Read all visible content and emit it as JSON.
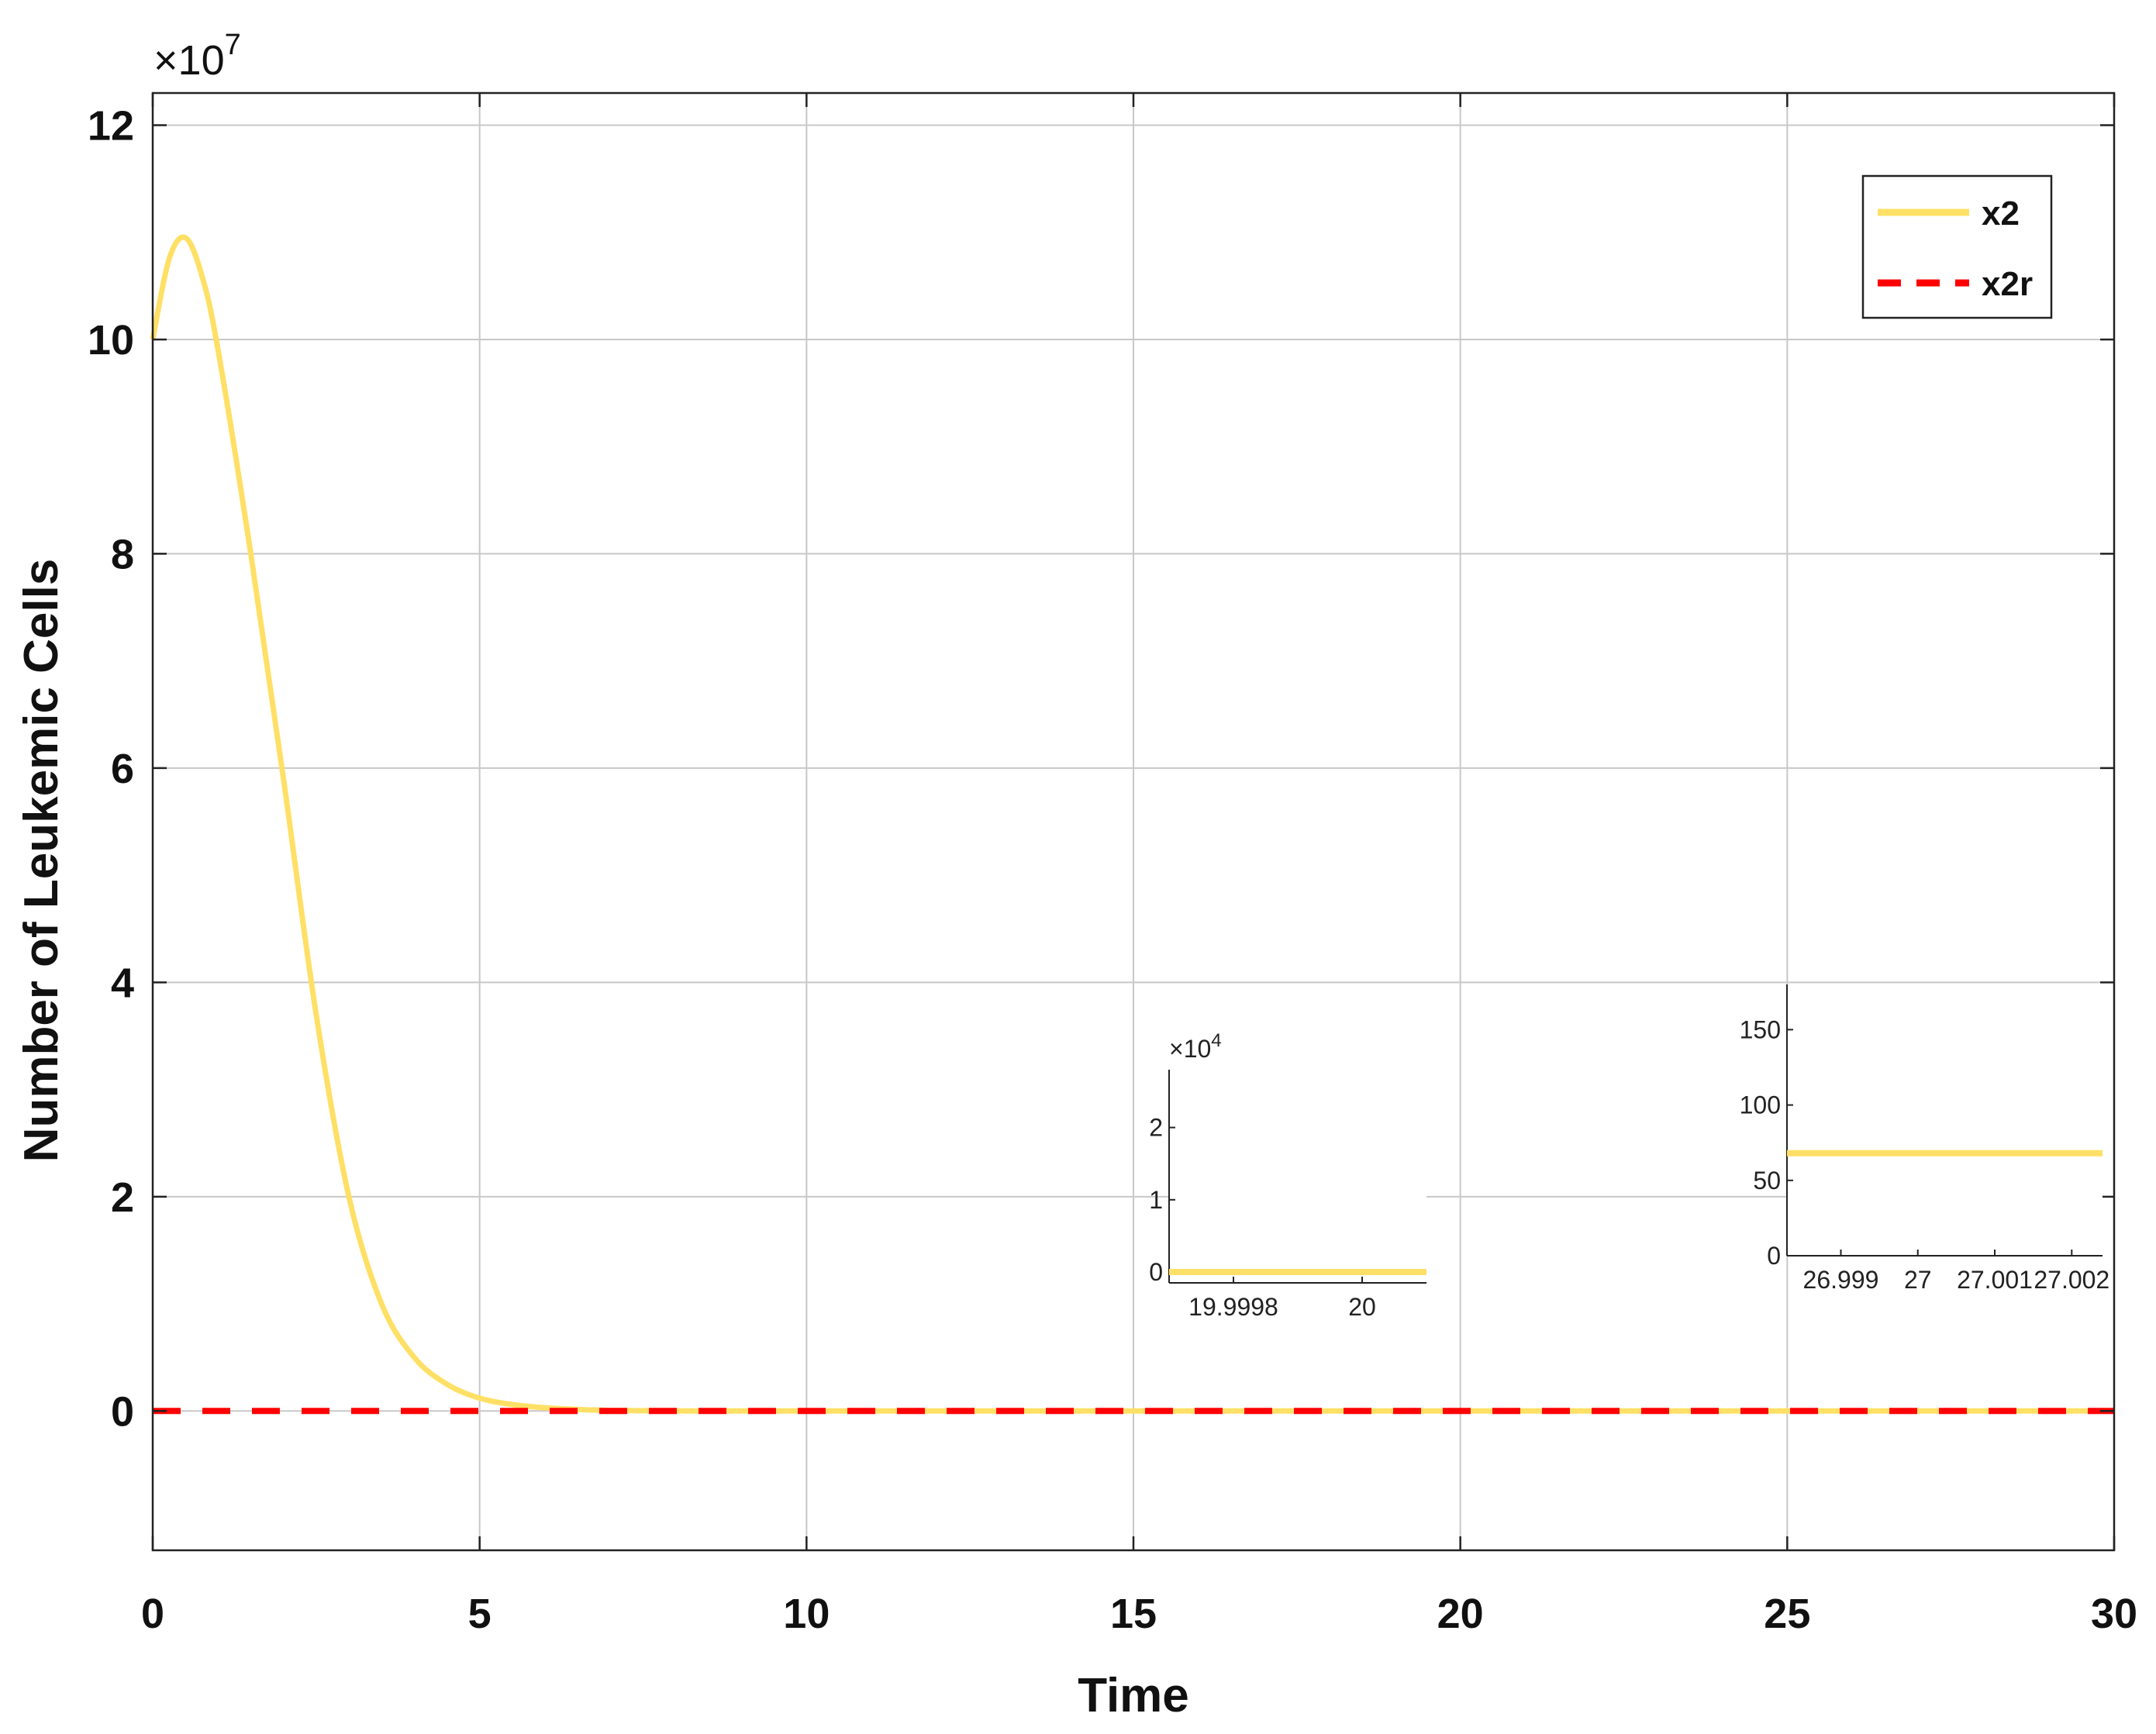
{
  "chart_data": {
    "type": "line",
    "xlabel": "Time",
    "ylabel": "Number of Leukemic Cells",
    "y_exponent_label": "×10",
    "y_exponent_power": "7",
    "xlim": [
      0,
      30
    ],
    "ylim": [
      -1.3,
      12.3
    ],
    "x_ticks": [
      0,
      5,
      10,
      15,
      20,
      25,
      30
    ],
    "x_tick_labels": [
      "0",
      "5",
      "10",
      "15",
      "20",
      "25",
      "30"
    ],
    "y_ticks": [
      0,
      2,
      4,
      6,
      8,
      10,
      12
    ],
    "y_tick_labels": [
      "0",
      "2",
      "4",
      "6",
      "8",
      "10",
      "12"
    ],
    "grid": true,
    "legend_position": "top-right",
    "series": [
      {
        "name": "x2",
        "color": "#ffe066",
        "style": "solid",
        "x": [
          0,
          0.25,
          0.5,
          0.75,
          1,
          1.5,
          2,
          2.5,
          3,
          3.5,
          4,
          4.5,
          5,
          5.5,
          6,
          6.5,
          7,
          8,
          10,
          15,
          20,
          25,
          30
        ],
        "y": [
          10.0,
          10.75,
          10.95,
          10.6,
          9.9,
          8.0,
          5.9,
          3.7,
          2.0,
          1.0,
          0.5,
          0.25,
          0.12,
          0.06,
          0.03,
          0.015,
          0.005,
          0.001,
          0,
          0,
          0,
          0,
          0
        ]
      },
      {
        "name": "x2r",
        "color": "#ff0000",
        "style": "dashed",
        "x": [
          0,
          30
        ],
        "y": [
          0,
          0
        ]
      }
    ],
    "insets": [
      {
        "x_tick_labels": [
          "19.9998",
          "20"
        ],
        "y_tick_labels": [
          "0",
          "1",
          "2"
        ],
        "y_exponent_label": "×10",
        "y_exponent_power": "4",
        "xlim": [
          19.9997,
          20.0001
        ],
        "ylim": [
          -0.15,
          2.8
        ],
        "series_x": [
          19.9997,
          20.0001
        ],
        "series_y": [
          0,
          0
        ]
      },
      {
        "x_tick_labels": [
          "26.999",
          "27",
          "27.001",
          "27.002"
        ],
        "y_tick_labels": [
          "0",
          "50",
          "100",
          "150"
        ],
        "xlim": [
          26.9983,
          27.0024
        ],
        "ylim": [
          0,
          180
        ],
        "series_x": [
          26.9983,
          27.0024
        ],
        "series_y": [
          68,
          68
        ]
      }
    ]
  }
}
